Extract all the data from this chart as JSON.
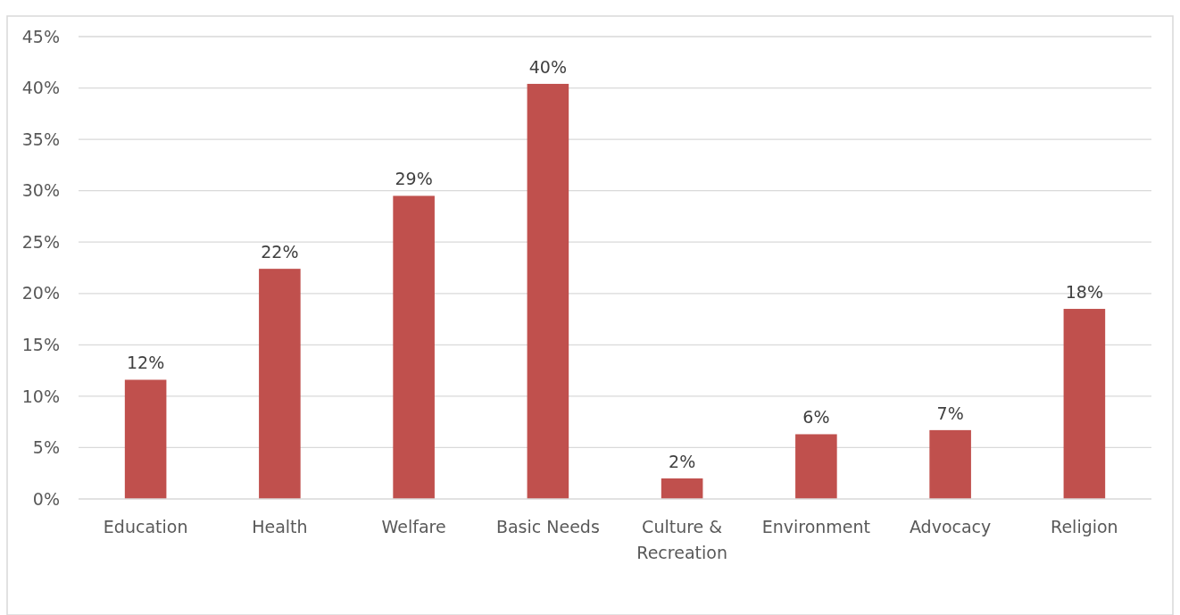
{
  "chart_data": {
    "type": "bar",
    "categories": [
      "Education",
      "Health",
      "Welfare",
      "Basic Needs",
      "Culture & Recreation",
      "Environment",
      "Advocacy",
      "Religion"
    ],
    "values": [
      11.6,
      22.4,
      29.5,
      40.4,
      2.0,
      6.3,
      6.7,
      18.5
    ],
    "value_labels": [
      "12%",
      "22%",
      "29%",
      "40%",
      "2%",
      "6%",
      "7%",
      "18%"
    ],
    "color": "#c0504d",
    "ylim": [
      0,
      45
    ],
    "yticks": [
      {
        "value": 0,
        "label": "0%"
      },
      {
        "value": 5,
        "label": "5%"
      },
      {
        "value": 10,
        "label": "10%"
      },
      {
        "value": 15,
        "label": "15%"
      },
      {
        "value": 20,
        "label": "20%"
      },
      {
        "value": 25,
        "label": "25%"
      },
      {
        "value": 30,
        "label": "30%"
      },
      {
        "value": 35,
        "label": "35%"
      },
      {
        "value": 40,
        "label": "40%"
      },
      {
        "value": 45,
        "label": "45%"
      }
    ],
    "grid": "y"
  }
}
